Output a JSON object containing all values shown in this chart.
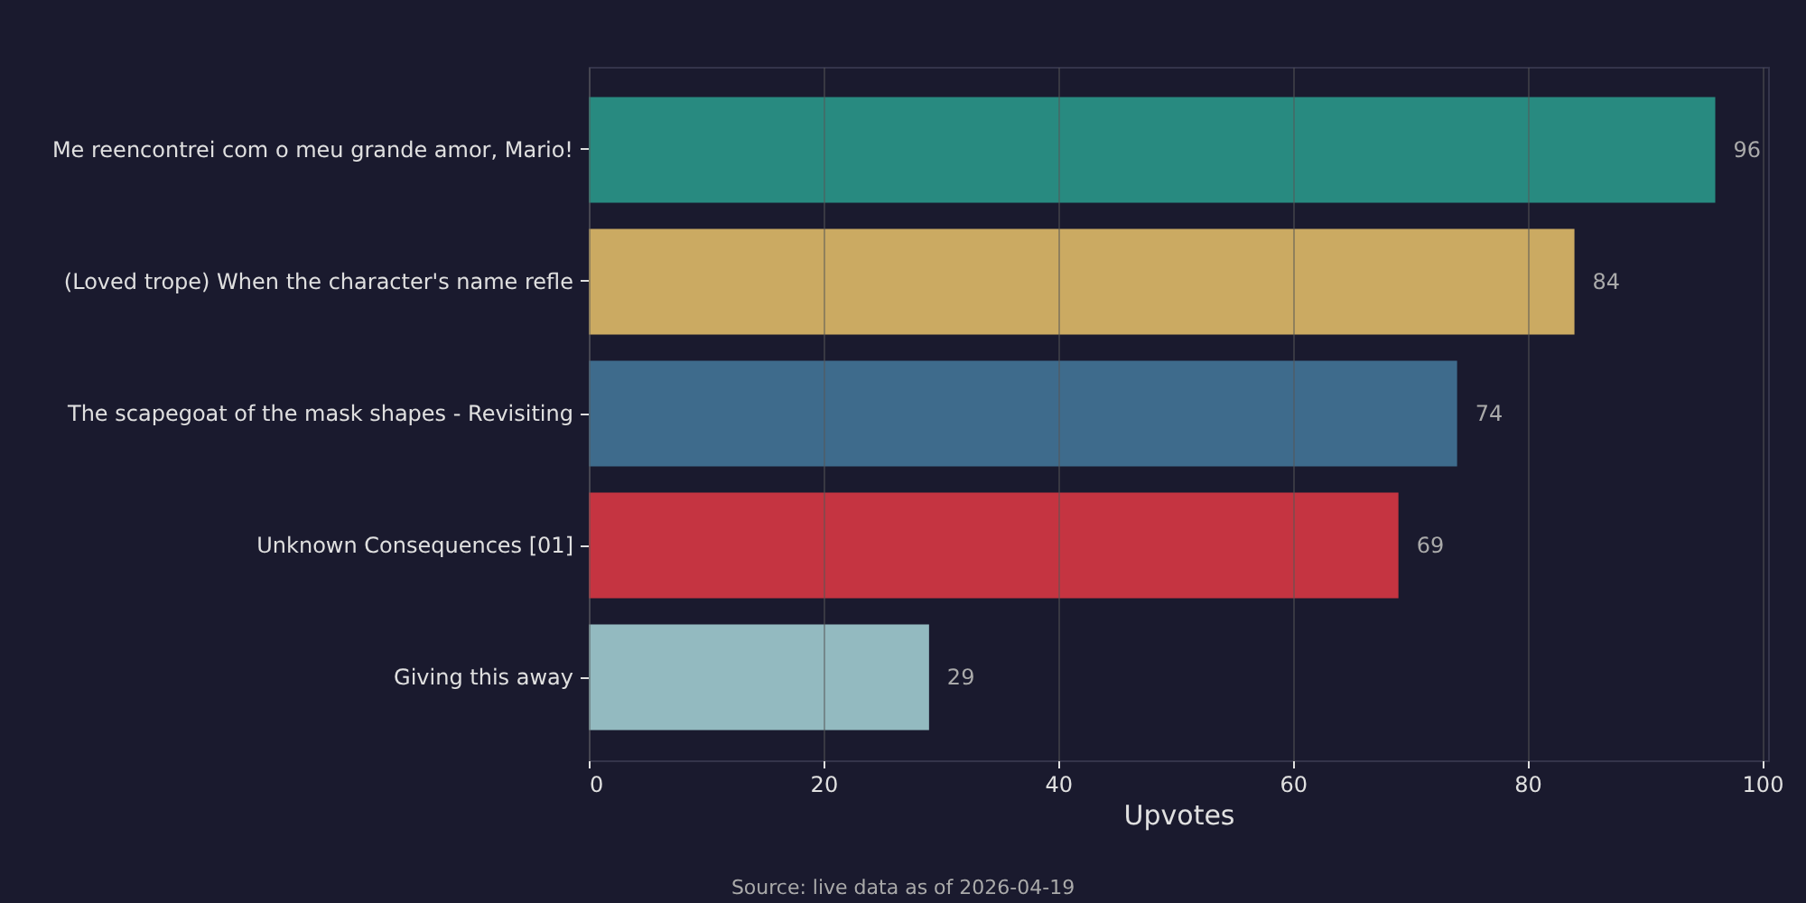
{
  "chart_data": {
    "type": "bar",
    "orientation": "horizontal",
    "categories": [
      "Me reencontrei com o meu grande amor, Mario!",
      "(Loved trope) When the character's name refle",
      "The scapegoat of the mask shapes - Revisiting",
      "Unknown Consequences [01]",
      "Giving this away"
    ],
    "values": [
      96,
      84,
      74,
      69,
      29
    ],
    "colors": [
      "#288a80",
      "#cbaa62",
      "#3e6b8c",
      "#c53441",
      "#93bac0"
    ],
    "xlabel": "Upvotes",
    "xlim": [
      0,
      100.5
    ],
    "xticks": [
      0,
      20,
      40,
      60,
      80,
      100
    ],
    "grid": "x",
    "data_labels": true,
    "annotations": [
      "Source: live data as of 2026-04-19"
    ]
  }
}
